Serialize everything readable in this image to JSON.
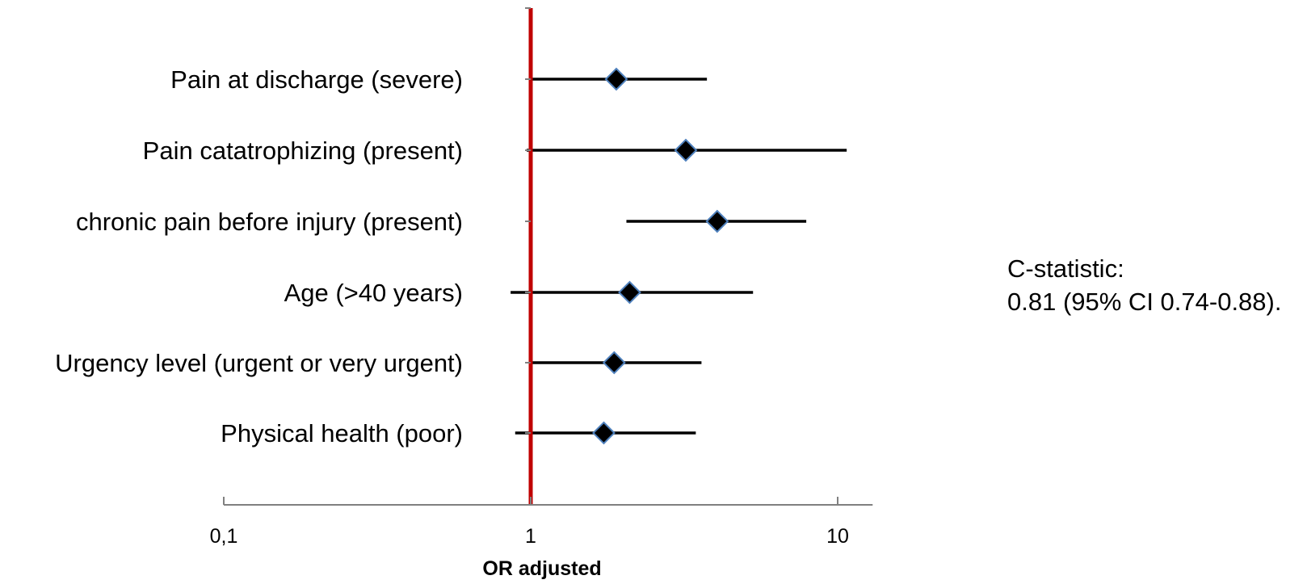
{
  "chart_data": {
    "type": "forest",
    "xlabel": "OR adjusted",
    "xscale": "log",
    "xlim": [
      0.1,
      13
    ],
    "xticks": [
      {
        "value": 0.1,
        "label": "0,1"
      },
      {
        "value": 1,
        "label": "1"
      },
      {
        "value": 10,
        "label": "10"
      }
    ],
    "reference_line": 1,
    "rows": [
      {
        "label": "Pain at discharge (severe)",
        "or": 1.9,
        "lower": 1.0,
        "upper": 3.75
      },
      {
        "label": "Pain catatrophizing (present)",
        "or": 3.2,
        "lower": 0.97,
        "upper": 10.7
      },
      {
        "label": "chronic pain before injury (present)",
        "or": 4.05,
        "lower": 2.05,
        "upper": 7.9
      },
      {
        "label": "Age (>40 years)",
        "or": 2.1,
        "lower": 0.86,
        "upper": 5.3
      },
      {
        "label": "Urgency level (urgent or very urgent)",
        "or": 1.87,
        "lower": 1.0,
        "upper": 3.6
      },
      {
        "label": "Physical health (poor)",
        "or": 1.73,
        "lower": 0.89,
        "upper": 3.45
      }
    ],
    "colors": {
      "reference_line": "#c00000",
      "marker_fill": "#000000",
      "marker_edge": "#4f81bd",
      "ci_line": "#000000",
      "axis": "#808080"
    }
  },
  "annotation": {
    "line1": "C-statistic:",
    "line2": "0.81 (95% CI 0.74-0.88)."
  }
}
